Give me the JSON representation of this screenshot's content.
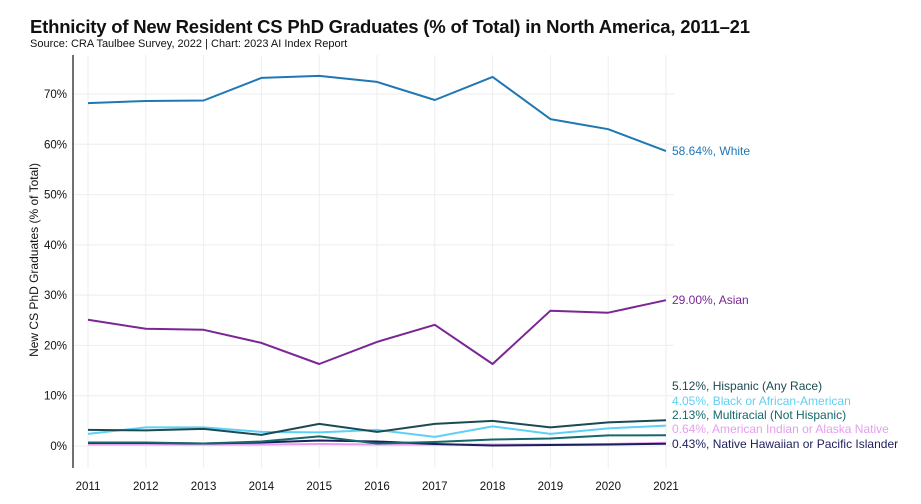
{
  "chart_data": {
    "type": "line",
    "title": "Ethnicity of New Resident CS PhD Graduates (% of Total) in North America, 2011–21",
    "subtitle": "Source: CRA Taulbee Survey, 2022 | Chart: 2023 AI Index Report",
    "xlabel": "",
    "ylabel": "New CS PhD Graduates (% of Total)",
    "ylim": [
      0,
      80
    ],
    "yticks": [
      0,
      10,
      20,
      30,
      40,
      50,
      60,
      70
    ],
    "ytick_labels": [
      "0%",
      "10%",
      "20%",
      "30%",
      "40%",
      "50%",
      "60%",
      "70%"
    ],
    "x": [
      "2011",
      "2012",
      "2013",
      "2014",
      "2015",
      "2016",
      "2017",
      "2018",
      "2019",
      "2020",
      "2021"
    ],
    "grid": true,
    "legend": "end-of-line labels (right)",
    "series": [
      {
        "name": "White",
        "color": "#1f77b4",
        "label": "58.64%, White",
        "values": [
          68.2,
          68.6,
          68.7,
          73.2,
          73.6,
          72.4,
          68.8,
          73.4,
          65.0,
          63.0,
          58.64
        ]
      },
      {
        "name": "Asian",
        "color": "#7b2596",
        "label": "29.00%, Asian",
        "values": [
          25.1,
          23.3,
          23.1,
          20.5,
          16.3,
          20.7,
          24.1,
          16.3,
          26.9,
          26.5,
          29.0
        ]
      },
      {
        "name": "Hispanic (Any Race)",
        "color": "#1b4b52",
        "label": "5.12%, Hispanic (Any Race)",
        "values": [
          3.2,
          3.1,
          3.4,
          2.2,
          4.4,
          2.8,
          4.4,
          5.0,
          3.7,
          4.7,
          5.12
        ]
      },
      {
        "name": "Black or African-American",
        "color": "#5fd0f5",
        "label": "4.05%, Black or African-American",
        "values": [
          2.4,
          3.7,
          3.7,
          2.8,
          2.7,
          3.2,
          1.8,
          3.9,
          2.4,
          3.5,
          4.05
        ]
      },
      {
        "name": "Multiracial (Not Hispanic)",
        "color": "#16686a",
        "label": "2.13%, Multiracial (Not Hispanic)",
        "values": [
          0.7,
          0.7,
          0.5,
          0.9,
          1.9,
          0.5,
          0.8,
          1.3,
          1.5,
          2.1,
          2.13
        ]
      },
      {
        "name": "American Indian or Alaska Native",
        "color": "#e59ef0",
        "label": "0.64%, American Indian or Alaska Native",
        "values": [
          0.3,
          0.3,
          0.3,
          0.3,
          0.4,
          0.3,
          0.3,
          0.3,
          0.3,
          0.4,
          0.64
        ]
      },
      {
        "name": "Native Hawaiian or Pacific Islander",
        "color": "#1d1e5c",
        "label": "0.43%, Native Hawaiian or Pacific Islander",
        "values": [
          0.6,
          0.6,
          0.5,
          0.7,
          1.1,
          0.9,
          0.4,
          0.1,
          0.2,
          0.3,
          0.43
        ]
      }
    ]
  }
}
